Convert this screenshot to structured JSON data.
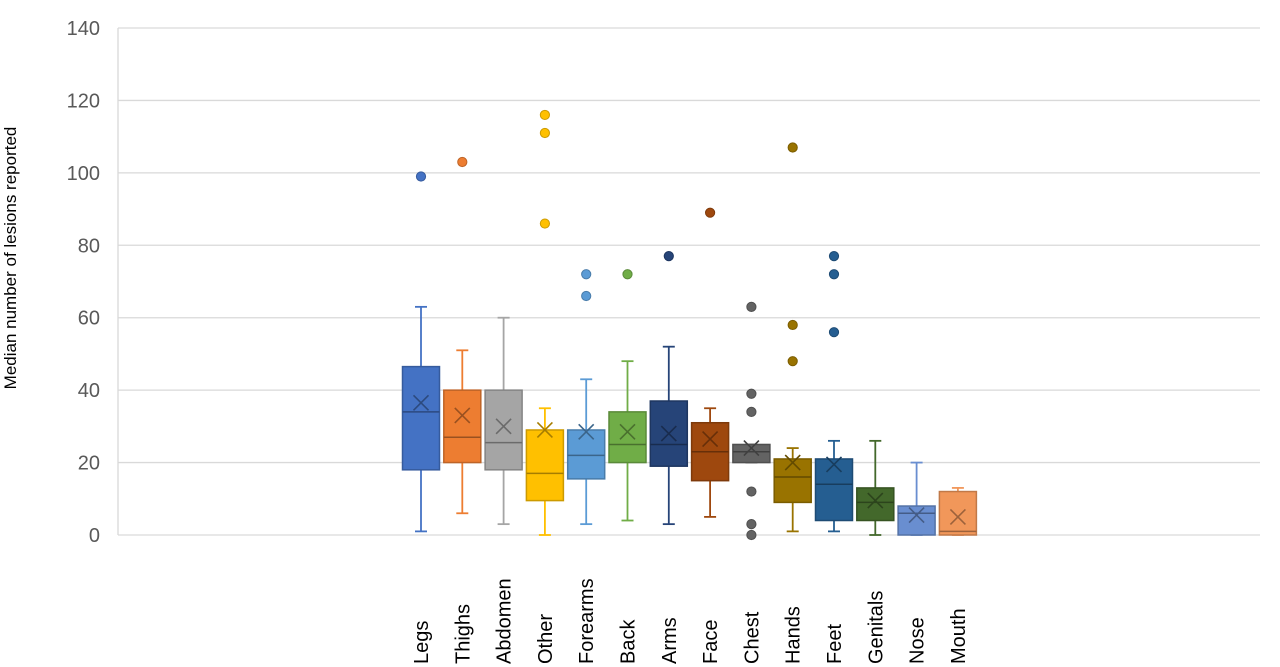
{
  "chart_data": {
    "type": "box",
    "title": "",
    "xlabel": "",
    "ylabel": "Median number of lesions reported",
    "ylim": [
      0,
      140
    ],
    "yticks": [
      0,
      20,
      40,
      60,
      80,
      100,
      120,
      140
    ],
    "grid": true,
    "legend": "none",
    "categories": [
      "Legs",
      "Thighs",
      "Abdomen",
      "Other",
      "Forearms",
      "Back",
      "Arms",
      "Face",
      "Chest",
      "Hands",
      "Feet",
      "Genitals",
      "Nose",
      "Mouth"
    ],
    "boxes": [
      {
        "category": "Legs",
        "color": "#4472C4",
        "min": 1,
        "q1": 18,
        "median": 34,
        "q3": 46.5,
        "max": 63,
        "mean": 36.5,
        "outliers": [
          99
        ]
      },
      {
        "category": "Thighs",
        "color": "#ED7D31",
        "min": 6,
        "q1": 20,
        "median": 27,
        "q3": 40,
        "max": 51,
        "mean": 33,
        "outliers": [
          103
        ]
      },
      {
        "category": "Abdomen",
        "color": "#A5A5A5",
        "min": 3,
        "q1": 18,
        "median": 25.5,
        "q3": 40,
        "max": 60,
        "mean": 30,
        "outliers": []
      },
      {
        "category": "Other",
        "color": "#FFC000",
        "min": 0,
        "q1": 9.5,
        "median": 17,
        "q3": 29,
        "max": 35,
        "mean": 29,
        "outliers": [
          86,
          111,
          116
        ]
      },
      {
        "category": "Forearms",
        "color": "#5B9BD5",
        "min": 3,
        "q1": 15.5,
        "median": 22,
        "q3": 29,
        "max": 43,
        "mean": 28.5,
        "outliers": [
          66,
          72
        ]
      },
      {
        "category": "Back",
        "color": "#70AD47",
        "min": 4,
        "q1": 20,
        "median": 25,
        "q3": 34,
        "max": 48,
        "mean": 28.5,
        "outliers": [
          72
        ]
      },
      {
        "category": "Arms",
        "color": "#264478",
        "min": 3,
        "q1": 19,
        "median": 25,
        "q3": 37,
        "max": 52,
        "mean": 28,
        "outliers": [
          77
        ]
      },
      {
        "category": "Face",
        "color": "#9E480E",
        "min": 5,
        "q1": 15,
        "median": 23,
        "q3": 31,
        "max": 35,
        "mean": 26.5,
        "outliers": [
          89
        ]
      },
      {
        "category": "Chest",
        "color": "#636363",
        "min": 20,
        "q1": 20,
        "median": 23,
        "q3": 25,
        "max": 25,
        "mean": 24,
        "outliers": [
          0,
          3,
          12,
          34,
          39,
          63
        ]
      },
      {
        "category": "Hands",
        "color": "#997300",
        "min": 1,
        "q1": 9,
        "median": 16,
        "q3": 21,
        "max": 24,
        "mean": 20,
        "outliers": [
          48,
          58,
          107
        ]
      },
      {
        "category": "Feet",
        "color": "#255E91",
        "min": 1,
        "q1": 4,
        "median": 14,
        "q3": 21,
        "max": 26,
        "mean": 19.5,
        "outliers": [
          56,
          72,
          77
        ]
      },
      {
        "category": "Genitals",
        "color": "#43682B",
        "min": 0,
        "q1": 4,
        "median": 9,
        "q3": 13,
        "max": 26,
        "mean": 9.5,
        "outliers": []
      },
      {
        "category": "Nose",
        "color": "#698ED0",
        "min": 0,
        "q1": 0,
        "median": 6,
        "q3": 8,
        "max": 20,
        "mean": 5.5,
        "outliers": []
      },
      {
        "category": "Mouth",
        "color": "#F1975A",
        "min": 0,
        "q1": 0,
        "median": 1,
        "q3": 12,
        "max": 13,
        "mean": 5,
        "outliers": []
      }
    ]
  }
}
